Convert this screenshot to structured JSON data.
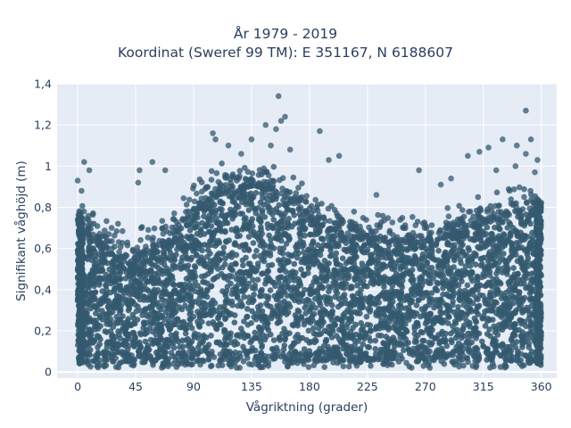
{
  "chart_data": {
    "type": "scatter",
    "title_line1": "År 1979 - 2019",
    "title_line2": "Koordinat (Sweref 99 TM): E 351167, N 6188607",
    "xlabel": "Vågriktning (grader)",
    "ylabel": "Signifikant våghöjd (m)",
    "xlim": [
      -16,
      372
    ],
    "ylim": [
      -0.03,
      1.4
    ],
    "x_ticks": [
      0,
      45,
      90,
      135,
      180,
      225,
      270,
      315,
      360
    ],
    "x_tick_labels": [
      "0",
      "45",
      "90",
      "135",
      "180",
      "225",
      "270",
      "315",
      "360"
    ],
    "y_ticks": [
      0,
      0.2,
      0.4,
      0.6,
      0.8,
      1.0,
      1.2,
      1.4
    ],
    "y_tick_labels": [
      "0",
      "0,2",
      "0,4",
      "0,6",
      "0,8",
      "1",
      "1,2",
      "1,4"
    ],
    "grid": true,
    "marker_color": "#34596f",
    "plot_background": "#e5ecf6",
    "dense_band_upper_envelope": [
      {
        "x": 0,
        "y": 0.7
      },
      {
        "x": 20,
        "y": 0.6
      },
      {
        "x": 45,
        "y": 0.55
      },
      {
        "x": 70,
        "y": 0.62
      },
      {
        "x": 90,
        "y": 0.78
      },
      {
        "x": 110,
        "y": 0.86
      },
      {
        "x": 140,
        "y": 0.9
      },
      {
        "x": 160,
        "y": 0.86
      },
      {
        "x": 180,
        "y": 0.74
      },
      {
        "x": 210,
        "y": 0.66
      },
      {
        "x": 250,
        "y": 0.62
      },
      {
        "x": 280,
        "y": 0.64
      },
      {
        "x": 315,
        "y": 0.72
      },
      {
        "x": 345,
        "y": 0.78
      },
      {
        "x": 360,
        "y": 0.74
      }
    ],
    "outlier_points": [
      {
        "x": 0,
        "y": 0.93
      },
      {
        "x": 5,
        "y": 1.02
      },
      {
        "x": 9,
        "y": 0.98
      },
      {
        "x": 3,
        "y": 0.88
      },
      {
        "x": 48,
        "y": 0.98
      },
      {
        "x": 58,
        "y": 1.02
      },
      {
        "x": 68,
        "y": 0.98
      },
      {
        "x": 47,
        "y": 0.92
      },
      {
        "x": 105,
        "y": 1.16
      },
      {
        "x": 107,
        "y": 1.13
      },
      {
        "x": 117,
        "y": 1.1
      },
      {
        "x": 127,
        "y": 1.06
      },
      {
        "x": 135,
        "y": 1.13
      },
      {
        "x": 146,
        "y": 1.2
      },
      {
        "x": 154,
        "y": 1.18
      },
      {
        "x": 156,
        "y": 1.34
      },
      {
        "x": 158,
        "y": 1.22
      },
      {
        "x": 161,
        "y": 1.24
      },
      {
        "x": 150,
        "y": 1.1
      },
      {
        "x": 165,
        "y": 1.08
      },
      {
        "x": 188,
        "y": 1.17
      },
      {
        "x": 195,
        "y": 1.03
      },
      {
        "x": 203,
        "y": 1.05
      },
      {
        "x": 232,
        "y": 0.86
      },
      {
        "x": 265,
        "y": 0.98
      },
      {
        "x": 282,
        "y": 0.91
      },
      {
        "x": 290,
        "y": 0.94
      },
      {
        "x": 303,
        "y": 1.05
      },
      {
        "x": 312,
        "y": 1.07
      },
      {
        "x": 319,
        "y": 1.09
      },
      {
        "x": 330,
        "y": 1.13
      },
      {
        "x": 341,
        "y": 1.1
      },
      {
        "x": 348,
        "y": 1.06
      },
      {
        "x": 352,
        "y": 1.13
      },
      {
        "x": 348,
        "y": 1.27
      },
      {
        "x": 357,
        "y": 1.03
      },
      {
        "x": 325,
        "y": 0.98
      },
      {
        "x": 340,
        "y": 1.0
      },
      {
        "x": 355,
        "y": 0.97
      }
    ]
  }
}
